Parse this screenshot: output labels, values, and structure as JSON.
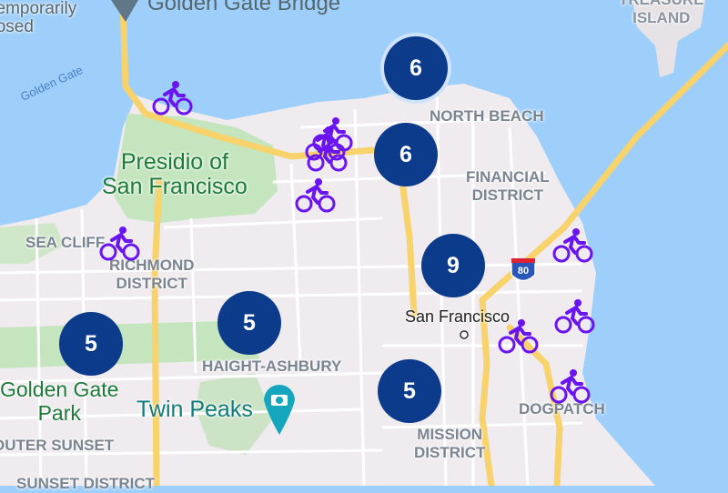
{
  "map": {
    "colors": {
      "water": "#9ecffa",
      "land": "#efebee",
      "park": "#c5e5bf",
      "highway": "#f8d26a",
      "cluster": "#0c3b8c",
      "bike": "#6a14f0"
    },
    "labels": {
      "temporarily_closed": [
        "Temporarily",
        "closed"
      ],
      "golden_gate_bridge": "Golden Gate Bridge",
      "golden_gate_water": "Golden Gate",
      "treasure_island": [
        "TREASURE",
        "ISLAND"
      ],
      "north_beach": "NORTH BEACH",
      "presidio": [
        "Presidio of",
        "San Francisco"
      ],
      "financial_district": [
        "FINANCIAL",
        "DISTRICT"
      ],
      "sea_cliff": "SEA CLIFF",
      "richmond": [
        "RICHMOND",
        "DISTRICT"
      ],
      "san_francisco": "San Francisco",
      "haight": "HAIGHT-ASHBURY",
      "golden_gate_park": [
        "Golden Gate",
        "Park"
      ],
      "twin_peaks": "Twin Peaks",
      "mission": [
        "MISSION",
        "DISTRICT"
      ],
      "dogpatch": "DOGPATCH",
      "outer_sunset": "OUTER SUNSET",
      "sunset_district": "SUNSET DISTRICT",
      "interstate": "80"
    },
    "clusters": [
      "6",
      "6",
      "9",
      "5",
      "5",
      "5"
    ],
    "bike_markers": 10
  }
}
